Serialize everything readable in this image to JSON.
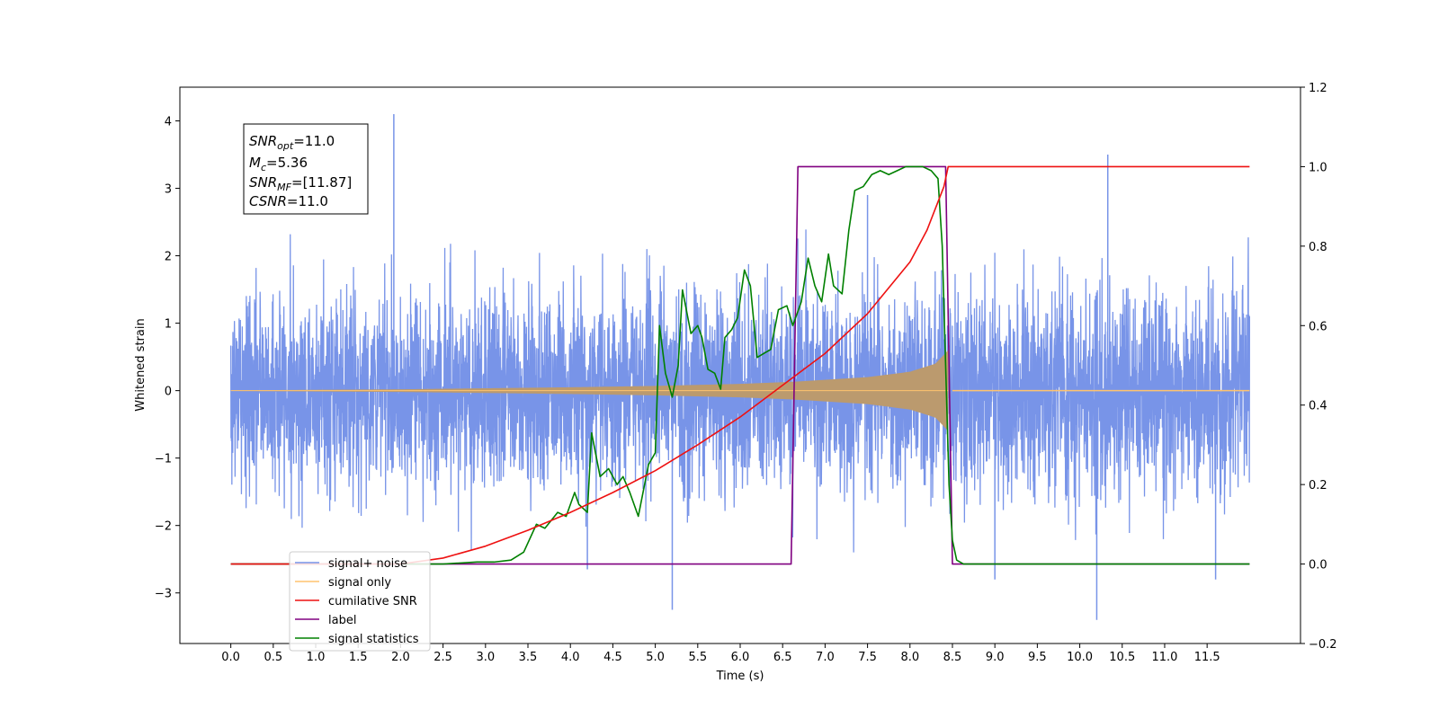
{
  "chart_data": {
    "type": "line",
    "xlabel": "Time (s)",
    "ylabel": "Whitened strain",
    "xticks": [
      "0.0",
      "0.5",
      "1.0",
      "1.5",
      "2.0",
      "2.5",
      "3.0",
      "3.5",
      "4.0",
      "4.5",
      "5.0",
      "5.5",
      "6.0",
      "6.5",
      "7.0",
      "7.5",
      "8.0",
      "8.5",
      "9.0",
      "9.5",
      "10.0",
      "10.5",
      "11.0",
      "11.5"
    ],
    "xlim": [
      -0.6,
      12.6
    ],
    "ylim": [
      -3.75,
      4.5
    ],
    "yticks": [
      "−3",
      "−2",
      "−1",
      "0",
      "1",
      "2",
      "3",
      "4"
    ],
    "y2lim": [
      -0.2,
      1.2
    ],
    "y2ticks": [
      "−0.2",
      "0.0",
      "0.2",
      "0.4",
      "0.6",
      "0.8",
      "1.0",
      "1.2"
    ],
    "grid": false,
    "legend_position": "lower-left",
    "colors": {
      "signal_noise": "#7894e8",
      "signal_only": "#ffc36e",
      "signal_only_fill": "#bb9a6e",
      "cumulative_snr": "#ee1111",
      "label": "#800080",
      "signal_statistics": "#008000"
    },
    "legend": [
      {
        "name": "signal+ noise",
        "color": "#7894e8"
      },
      {
        "name": "signal only",
        "color": "#ffc36e"
      },
      {
        "name": "cumilative SNR",
        "color": "#ee1111"
      },
      {
        "name": "label",
        "color": "#800080"
      },
      {
        "name": "signal statistics",
        "color": "#008000"
      }
    ],
    "annotation": {
      "line1": {
        "main": "SNR",
        "sub": "opt",
        "rest": "=11.0"
      },
      "line2": {
        "main": "M",
        "sub": "c",
        "rest": "=5.36"
      },
      "line3": {
        "main": "SNR",
        "sub": "MF",
        "rest": "=[11.87]"
      },
      "line4": {
        "main": "CSNR",
        "sub": "",
        "rest": "=11.0"
      }
    },
    "series": [
      {
        "name": "signal+ noise",
        "axis": "left",
        "x_range": [
          0.0,
          12.0
        ],
        "approx_envelope": [
          -2.4,
          2.5
        ],
        "spikes": [
          [
            1.92,
            4.1
          ],
          [
            5.2,
            -3.25
          ],
          [
            10.2,
            -3.4
          ],
          [
            10.33,
            3.5
          ],
          [
            9.0,
            -2.8
          ],
          [
            11.6,
            -2.8
          ],
          [
            4.2,
            -2.65
          ],
          [
            7.5,
            2.9
          ]
        ]
      },
      {
        "name": "signal only",
        "axis": "left",
        "x_range": [
          0.0,
          12.0
        ],
        "merger_time": 8.45,
        "amplitude_envelope": [
          [
            0.0,
            0.005
          ],
          [
            2.0,
            0.02
          ],
          [
            4.0,
            0.05
          ],
          [
            5.0,
            0.07
          ],
          [
            6.0,
            0.1
          ],
          [
            6.6,
            0.13
          ],
          [
            7.0,
            0.16
          ],
          [
            7.5,
            0.2
          ],
          [
            8.0,
            0.28
          ],
          [
            8.3,
            0.4
          ],
          [
            8.45,
            0.6
          ],
          [
            8.5,
            0.0
          ],
          [
            12.0,
            0.0
          ]
        ]
      },
      {
        "name": "cumilative SNR",
        "axis": "right",
        "x": [
          0.0,
          2.0,
          2.5,
          3.0,
          3.5,
          4.0,
          4.5,
          5.0,
          5.5,
          6.0,
          6.5,
          7.0,
          7.5,
          8.0,
          8.2,
          8.4,
          8.45,
          8.5,
          12.0
        ],
        "y": [
          0.0,
          0.0,
          0.015,
          0.045,
          0.085,
          0.13,
          0.18,
          0.235,
          0.3,
          0.37,
          0.45,
          0.53,
          0.63,
          0.76,
          0.84,
          0.95,
          1.0,
          1.0,
          1.0
        ]
      },
      {
        "name": "label",
        "axis": "right",
        "x": [
          0.0,
          6.6,
          6.68,
          8.42,
          8.5,
          12.0
        ],
        "y": [
          0.0,
          0.0,
          1.0,
          1.0,
          0.0,
          0.0
        ]
      },
      {
        "name": "signal statistics",
        "axis": "right",
        "x": [
          0.0,
          2.5,
          2.9,
          3.1,
          3.3,
          3.45,
          3.6,
          3.7,
          3.85,
          3.95,
          4.05,
          4.1,
          4.2,
          4.25,
          4.35,
          4.45,
          4.55,
          4.62,
          4.7,
          4.8,
          4.92,
          5.0,
          5.05,
          5.12,
          5.2,
          5.27,
          5.32,
          5.42,
          5.5,
          5.55,
          5.62,
          5.7,
          5.77,
          5.82,
          5.9,
          5.97,
          6.05,
          6.12,
          6.2,
          6.28,
          6.36,
          6.45,
          6.55,
          6.62,
          6.72,
          6.8,
          6.88,
          6.96,
          7.04,
          7.1,
          7.2,
          7.28,
          7.35,
          7.45,
          7.55,
          7.65,
          7.75,
          7.85,
          7.95,
          8.05,
          8.15,
          8.25,
          8.33,
          8.38,
          8.42,
          8.46,
          8.5,
          8.55,
          8.63,
          12.0
        ],
        "y": [
          0.0,
          0.0,
          0.005,
          0.005,
          0.01,
          0.03,
          0.1,
          0.09,
          0.13,
          0.12,
          0.18,
          0.15,
          0.13,
          0.33,
          0.22,
          0.24,
          0.2,
          0.22,
          0.18,
          0.12,
          0.25,
          0.28,
          0.6,
          0.48,
          0.42,
          0.5,
          0.69,
          0.58,
          0.6,
          0.57,
          0.49,
          0.48,
          0.44,
          0.57,
          0.59,
          0.62,
          0.74,
          0.7,
          0.52,
          0.53,
          0.54,
          0.64,
          0.65,
          0.6,
          0.66,
          0.77,
          0.7,
          0.66,
          0.78,
          0.7,
          0.68,
          0.84,
          0.94,
          0.95,
          0.98,
          0.99,
          0.98,
          0.99,
          1.0,
          1.0,
          1.0,
          0.99,
          0.97,
          0.8,
          0.5,
          0.2,
          0.06,
          0.01,
          0.0,
          0.0
        ]
      }
    ]
  }
}
